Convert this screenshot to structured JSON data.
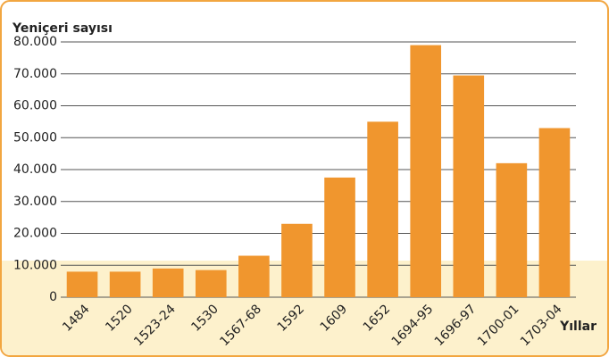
{
  "chart_data": {
    "type": "bar",
    "y_label": "Yeniçeri sayısı",
    "x_label": "Yıllar",
    "categories": [
      "1484",
      "1520",
      "1523-24",
      "1530",
      "1567-68",
      "1592",
      "1609",
      "1652",
      "1694-95",
      "1696-97",
      "1700-01",
      "1703-04"
    ],
    "values": [
      8000,
      8000,
      9000,
      8500,
      13000,
      23000,
      37500,
      55000,
      79000,
      69500,
      42000,
      53000
    ],
    "color": "#f0962e",
    "ylim": [
      0,
      80000
    ],
    "yticks": [
      0,
      {
        "value": 10000,
        "label": "10.000"
      },
      {
        "value": 20000,
        "label": "20.000"
      },
      {
        "value": 30000,
        "label": "30.000"
      },
      {
        "value": 40000,
        "label": "40.000"
      },
      {
        "value": 50000,
        "label": "50.000"
      },
      {
        "value": 60000,
        "label": "60.000"
      },
      {
        "value": 70000,
        "label": "70.000"
      },
      {
        "value": 80000,
        "label": "80.000"
      }
    ],
    "grid": true
  }
}
